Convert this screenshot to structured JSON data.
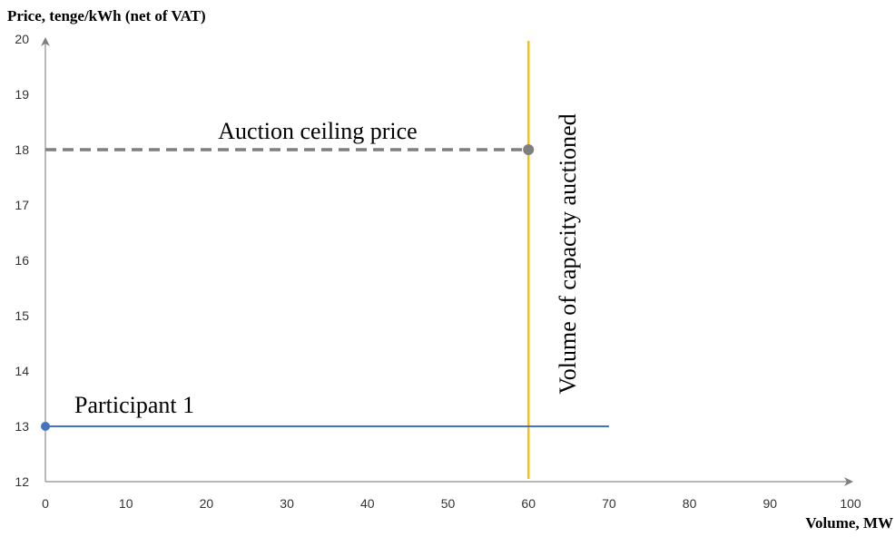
{
  "chart_data": {
    "type": "line",
    "ylabel": "Price, tenge/kWh (net of VAT)",
    "xlabel": "Volume, MW",
    "xlim": [
      0,
      100
    ],
    "ylim": [
      12,
      20
    ],
    "x_ticks": [
      "0",
      "10",
      "20",
      "30",
      "40",
      "50",
      "60",
      "70",
      "80",
      "90",
      "100"
    ],
    "y_ticks": [
      "12",
      "13",
      "14",
      "15",
      "16",
      "17",
      "18",
      "19",
      "20"
    ],
    "grid": false,
    "series": [
      {
        "name": "Auction ceiling price",
        "style": "dashed",
        "color": "#7f7f7f",
        "points": [
          [
            0,
            18
          ],
          [
            60,
            18
          ]
        ],
        "end_marker": true
      },
      {
        "name": "Participant 1",
        "style": "solid",
        "color": "#4472c4",
        "points": [
          [
            0,
            13
          ],
          [
            70,
            13
          ]
        ],
        "start_marker": true
      }
    ],
    "vertical_line": {
      "name": "Volume of capacity auctioned",
      "x": 60,
      "color": "#ffc000"
    }
  }
}
